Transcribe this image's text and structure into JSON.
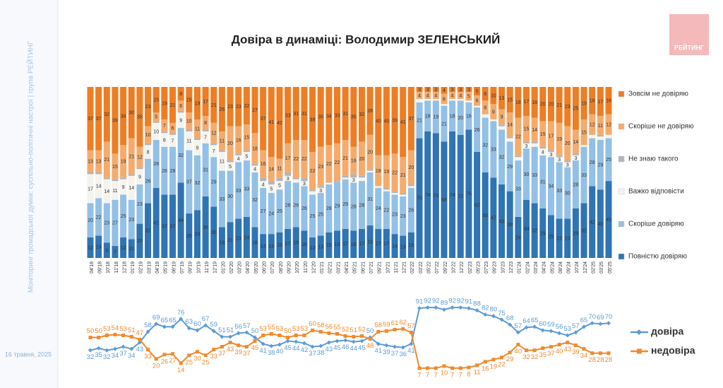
{
  "page": {
    "sidebar_text": "Моніторинг громадської думки: суспільно-політичні настрої | група РЕЙТИНГ",
    "date": "16 травня, 2025",
    "logo": "РЕЙТИНГ"
  },
  "chart_data": [
    {
      "type": "stacked_bar",
      "title": "Довіра в динаміці: Володимир ЗЕЛЕНСЬКИЙ",
      "categories": [
        "04'18",
        "09'18",
        "10'18",
        "11'18",
        "12'18",
        "01'19",
        "02'19",
        "03'19",
        "04'19",
        "05'19",
        "06'19",
        "07'19",
        "09'19",
        "10'19",
        "11'19",
        "12'19",
        "01'20",
        "02'20",
        "03'20",
        "04'20",
        "05'20",
        "06'20",
        "07'20",
        "08'20",
        "09'20",
        "10'20",
        "11'20",
        "12'20",
        "01'21",
        "02'21",
        "03'21",
        "04'21",
        "05'21",
        "06'21",
        "07'21",
        "09'21",
        "10'21",
        "11'21",
        "12'21",
        "02'22",
        "03'22",
        "05'22",
        "07'22",
        "09'22",
        "10'22",
        "12'22",
        "02'23",
        "05'23",
        "07'23",
        "09'23",
        "10'23",
        "12'23",
        "01'24",
        "02'24",
        "03'24",
        "04'24",
        "05'24",
        "08'24",
        "09'24",
        "10'24",
        "12'24",
        "02'25",
        "03'25",
        "05'25"
      ],
      "series": [
        {
          "name": "Зовсім не довіряю",
          "color": "#ee7d23",
          "values": [
            37,
            37,
            32,
            39,
            34,
            30,
            35,
            23,
            15,
            19,
            21,
            8,
            15,
            19,
            17,
            21,
            26,
            23,
            23,
            22,
            27,
            37,
            41,
            42,
            33,
            31,
            31,
            38,
            35,
            34,
            33,
            31,
            35,
            32,
            28,
            40,
            40,
            39,
            41,
            37,
            3,
            3,
            3,
            4,
            3,
            3,
            3,
            5,
            8,
            10,
            13,
            15,
            18,
            17,
            18,
            20,
            20,
            21,
            23,
            25,
            19,
            16,
            17,
            16
          ]
        },
        {
          "name": "Скоріше не довіряю",
          "color": "#f6ab6c",
          "values": [
            13,
            13,
            21,
            15,
            19,
            21,
            12,
            10,
            5,
            7,
            6,
            6,
            10,
            11,
            8,
            12,
            11,
            20,
            16,
            15,
            18,
            16,
            14,
            11,
            17,
            22,
            22,
            22,
            23,
            22,
            22,
            21,
            16,
            20,
            20,
            18,
            19,
            22,
            21,
            20,
            4,
            4,
            4,
            6,
            4,
            4,
            5,
            6,
            8,
            9,
            9,
            14,
            22,
            15,
            14,
            15,
            17,
            19,
            20,
            14,
            15,
            12,
            11,
            12
          ]
        },
        {
          "name": "Не знаю такого",
          "color": "#b4b4b4",
          "values": [
            1,
            1,
            1,
            1,
            1,
            1,
            1,
            1,
            1,
            1,
            1,
            1,
            1,
            1,
            1,
            1,
            1,
            1,
            1,
            1,
            1,
            2,
            2,
            2,
            2,
            1,
            2,
            1,
            1,
            0,
            0,
            1,
            2,
            1,
            1,
            0,
            1,
            1,
            1,
            1,
            0,
            0,
            0,
            0,
            0,
            0,
            0,
            0,
            0,
            0,
            1,
            1,
            1,
            1,
            1,
            1,
            1,
            1,
            1,
            1,
            0,
            0,
            1,
            0
          ]
        },
        {
          "name": "Важко відповісти",
          "color": "#f4f3ee",
          "values": [
            17,
            14,
            14,
            11,
            9,
            14,
            9,
            8,
            10,
            8,
            7,
            9,
            11,
            9,
            7,
            7,
            11,
            5,
            4,
            5,
            4,
            4,
            5,
            5,
            3,
            2,
            3,
            2,
            3,
            1,
            0,
            1,
            3,
            2,
            1,
            1,
            1,
            1,
            1,
            1,
            2,
            1,
            1,
            1,
            1,
            1,
            1,
            1,
            2,
            1,
            2,
            2,
            2,
            3,
            2,
            4,
            3,
            3,
            3,
            3,
            1,
            2,
            2,
            2
          ]
        },
        {
          "name": "Скоріше довіряю",
          "color": "#93c0e6",
          "values": [
            20,
            22,
            23,
            27,
            25,
            23,
            23,
            26,
            28,
            28,
            28,
            32,
            37,
            32,
            31,
            29,
            33,
            30,
            33,
            33,
            32,
            27,
            24,
            25,
            28,
            26,
            26,
            25,
            25,
            28,
            29,
            29,
            28,
            28,
            31,
            24,
            22,
            23,
            23,
            26,
            21,
            18,
            19,
            21,
            18,
            20,
            16,
            26,
            32,
            33,
            32,
            29,
            33,
            30,
            33,
            31,
            34,
            33,
            30,
            28,
            33,
            28,
            29,
            25
          ]
        },
        {
          "name": "Повністю довіряю",
          "color": "#2f74b5",
          "values": [
            12,
            13,
            9,
            7,
            12,
            11,
            20,
            32,
            41,
            37,
            37,
            44,
            26,
            28,
            36,
            30,
            18,
            21,
            23,
            24,
            18,
            14,
            14,
            15,
            17,
            18,
            16,
            12,
            13,
            15,
            16,
            17,
            16,
            17,
            19,
            17,
            17,
            14,
            13,
            15,
            70,
            74,
            73,
            68,
            74,
            72,
            75,
            62,
            50,
            47,
            43,
            39,
            24,
            34,
            32,
            29,
            25,
            23,
            23,
            29,
            32,
            42,
            40,
            45
          ]
        }
      ]
    },
    {
      "type": "line",
      "series": [
        {
          "name": "довіра",
          "color": "#5b9bd5",
          "values": [
            32,
            35,
            32,
            34,
            37,
            34,
            43,
            58,
            69,
            65,
            65,
            76,
            63,
            60,
            67,
            59,
            51,
            51,
            56,
            57,
            50,
            41,
            38,
            40,
            45,
            44,
            42,
            37,
            38,
            43,
            45,
            46,
            44,
            45,
            50,
            41,
            39,
            37,
            36,
            41,
            91,
            92,
            92,
            89,
            92,
            92,
            91,
            88,
            82,
            80,
            75,
            68,
            57,
            64,
            65,
            60,
            59,
            56,
            53,
            57,
            65,
            70,
            69,
            70
          ]
        },
        {
          "name": "недовіра",
          "color": "#f08a2c",
          "values": [
            50,
            50,
            53,
            54,
            53,
            51,
            47,
            33,
            20,
            26,
            27,
            14,
            25,
            30,
            25,
            33,
            37,
            43,
            39,
            37,
            45,
            53,
            55,
            53,
            50,
            53,
            53,
            60,
            58,
            56,
            55,
            52,
            51,
            52,
            48,
            58,
            59,
            61,
            62,
            57,
            7,
            7,
            7,
            10,
            7,
            7,
            8,
            11,
            16,
            19,
            22,
            29,
            40,
            32,
            32,
            35,
            37,
            40,
            43,
            39,
            34,
            28,
            28,
            28
          ]
        }
      ]
    }
  ]
}
